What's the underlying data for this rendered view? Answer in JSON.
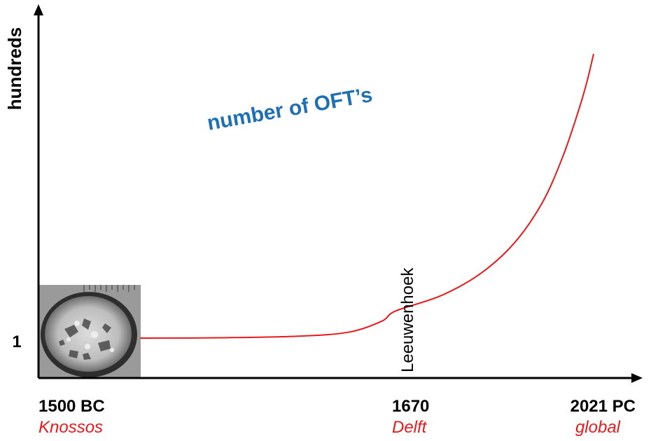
{
  "chart_data": {
    "type": "line",
    "ylabel": "hundreds",
    "yticks": [
      {
        "label": "1"
      }
    ],
    "xticks": [
      {
        "label": "1500 BC",
        "sub": "Knossos"
      },
      {
        "label": "1670",
        "sub": "Delft"
      },
      {
        "label": "2021 PC",
        "sub": "global"
      }
    ],
    "series": [
      {
        "name": "number of OFT’s",
        "color": "#e8191c",
        "points": [
          {
            "x": -1500,
            "y": 1.0
          },
          {
            "x": -500,
            "y": 1.01
          },
          {
            "x": 500,
            "y": 1.06
          },
          {
            "x": 1100,
            "y": 1.18
          },
          {
            "x": 1500,
            "y": 1.5
          },
          {
            "x": 1670,
            "y": 1.8
          },
          {
            "x": 1750,
            "y": 2.25
          },
          {
            "x": 1820,
            "y": 2.9
          },
          {
            "x": 1880,
            "y": 3.8
          },
          {
            "x": 1930,
            "y": 5.0
          },
          {
            "x": 1965,
            "y": 6.3
          },
          {
            "x": 1990,
            "y": 7.5
          },
          {
            "x": 2008,
            "y": 8.5
          },
          {
            "x": 2021,
            "y": 9.4
          }
        ]
      }
    ],
    "annotations": [
      {
        "text": "Leeuwenhoek",
        "x": 1670
      }
    ],
    "colors": {
      "axis": "#000000",
      "series_label": "#1f6fb5",
      "place": "#e8191c"
    },
    "image": {
      "name": "knossos-fossil-image"
    }
  }
}
